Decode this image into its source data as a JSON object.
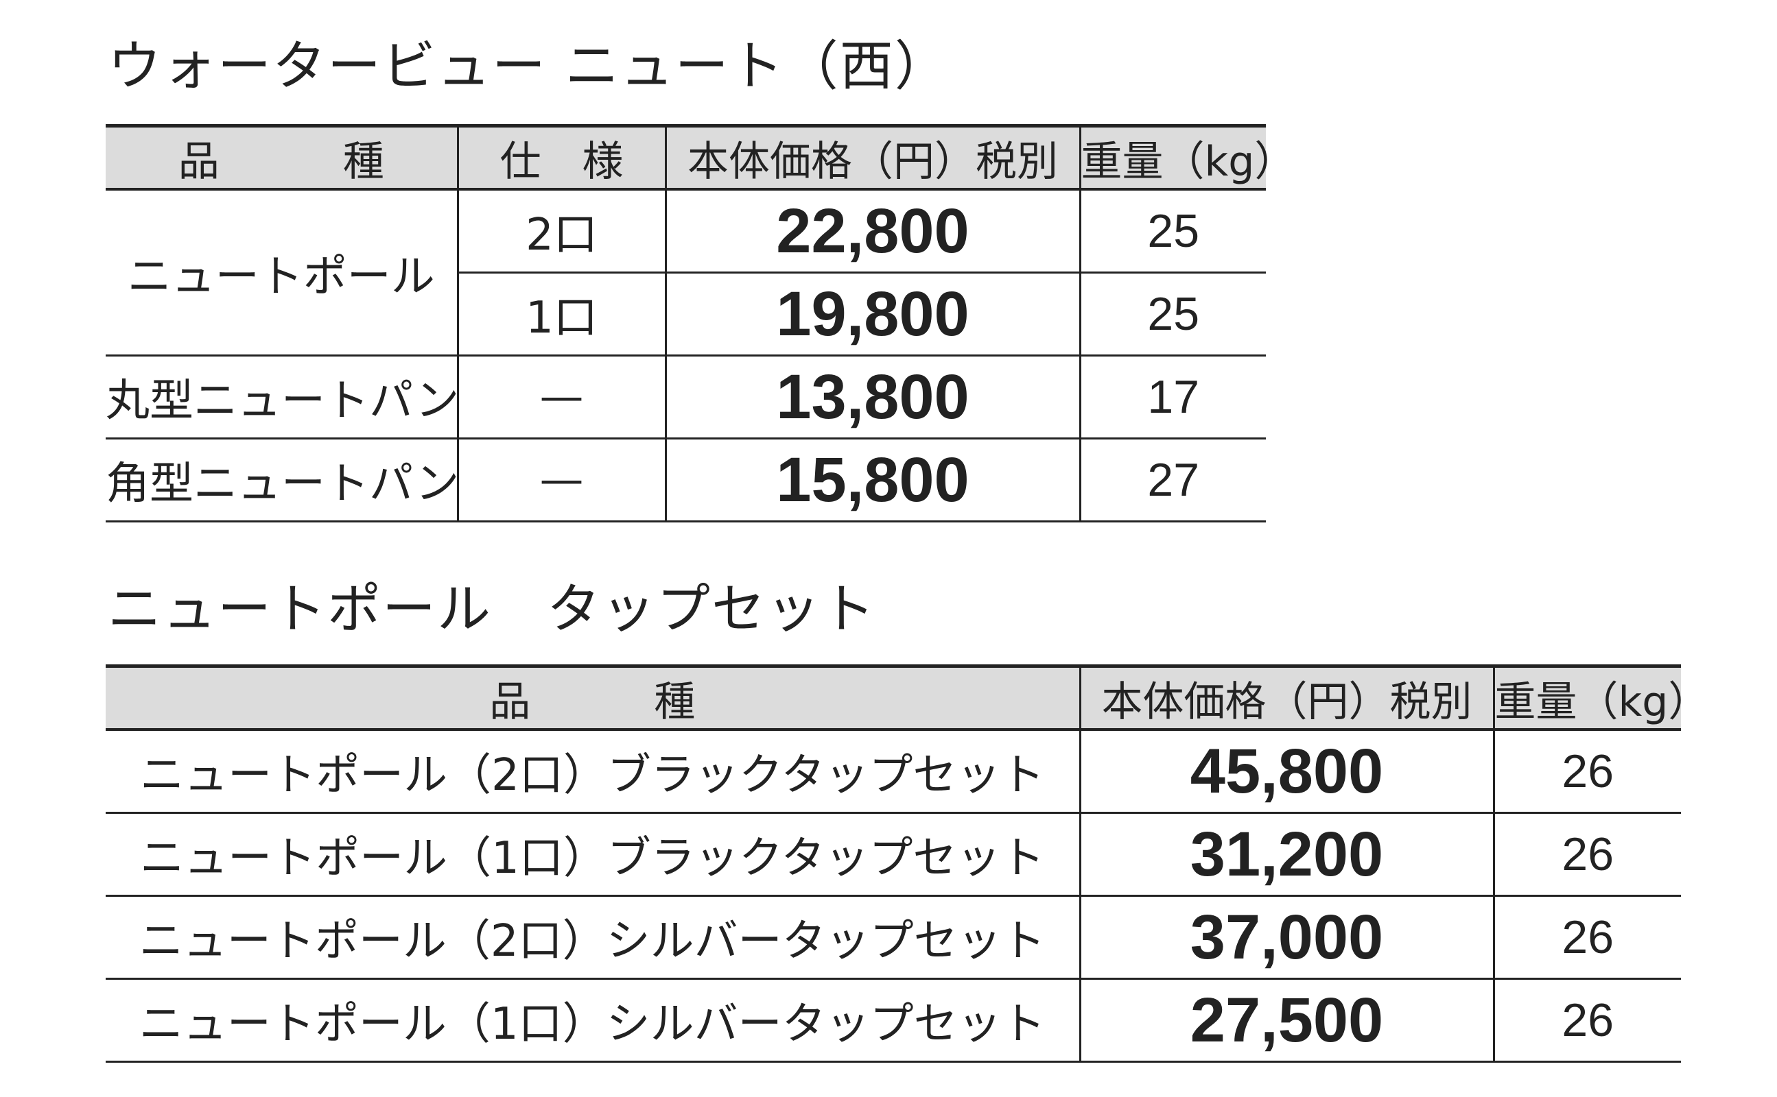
{
  "sections": [
    {
      "title": "ウォータービュー ニュート（西）",
      "headers": [
        "品　　　種",
        "仕　様",
        "本体価格（円）税別",
        "重量（kg）"
      ],
      "groups": [
        {
          "product": "ニュートポール",
          "variants": [
            {
              "spec": "2口",
              "price": "22,800",
              "weight": "25"
            },
            {
              "spec": "1口",
              "price": "19,800",
              "weight": "25"
            }
          ]
        },
        {
          "product": "丸型ニュートパン",
          "variants": [
            {
              "spec": "—",
              "price": "13,800",
              "weight": "17"
            }
          ]
        },
        {
          "product": "角型ニュートパン",
          "variants": [
            {
              "spec": "—",
              "price": "15,800",
              "weight": "27"
            }
          ]
        }
      ]
    },
    {
      "title": "ニュートポール　タップセット",
      "headers": [
        "品　　　種",
        "本体価格（円）税別",
        "重量（kg）"
      ],
      "groups": [
        {
          "product": "ニュートポール（2口）ブラックタップセット",
          "variants": [
            {
              "price": "45,800",
              "weight": "26"
            }
          ]
        },
        {
          "product": "ニュートポール（1口）ブラックタップセット",
          "variants": [
            {
              "price": "31,200",
              "weight": "26"
            }
          ]
        },
        {
          "product": "ニュートポール（2口）シルバータップセット",
          "variants": [
            {
              "price": "37,000",
              "weight": "26"
            }
          ]
        },
        {
          "product": "ニュートポール（1口）シルバータップセット",
          "variants": [
            {
              "price": "27,500",
              "weight": "26"
            }
          ]
        }
      ]
    }
  ]
}
